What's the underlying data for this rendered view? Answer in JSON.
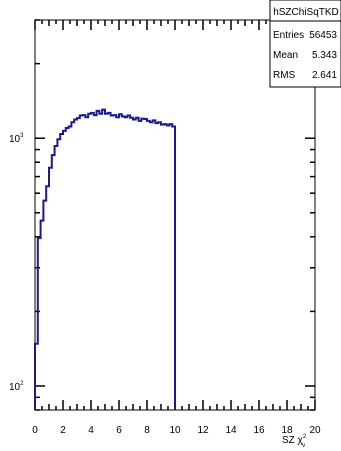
{
  "stats_box": {
    "name": "hSZChiSqTKD",
    "entries_label": "Entries",
    "entries_value": "56453",
    "mean_label": "Mean",
    "mean_value": "5.343",
    "rms_label": "RMS",
    "rms_value": "2.641"
  },
  "chart_data": {
    "type": "histogram",
    "xlabel": "SZ χ²",
    "xlabel_main": "SZ χ",
    "xlabel_sup": "2",
    "xlabel_sub": "ν",
    "xlim": [
      0,
      20
    ],
    "ylim": [
      80,
      3000
    ],
    "y_scale": "log",
    "x_ticks": [
      0,
      2,
      4,
      6,
      8,
      10,
      12,
      14,
      16,
      18,
      20
    ],
    "x_tick_labels": [
      "0",
      "2",
      "4",
      "6",
      "8",
      "10",
      "12",
      "14",
      "16",
      "18",
      "20"
    ],
    "y_tick_labels": [
      {
        "value": 100,
        "base": "10",
        "exp": "2"
      },
      {
        "value": 1000,
        "base": "10",
        "exp": "3"
      }
    ],
    "bin_width": 0.2,
    "line_color": "#1a1a8c",
    "values": [
      148,
      395,
      465,
      560,
      640,
      760,
      855,
      930,
      990,
      1040,
      1070,
      1100,
      1115,
      1160,
      1190,
      1205,
      1235,
      1240,
      1215,
      1255,
      1265,
      1240,
      1290,
      1255,
      1305,
      1255,
      1265,
      1235,
      1240,
      1215,
      1250,
      1225,
      1215,
      1235,
      1210,
      1190,
      1210,
      1175,
      1200,
      1195,
      1175,
      1160,
      1180,
      1150,
      1160,
      1135,
      1140,
      1125,
      1140,
      1115
    ]
  }
}
